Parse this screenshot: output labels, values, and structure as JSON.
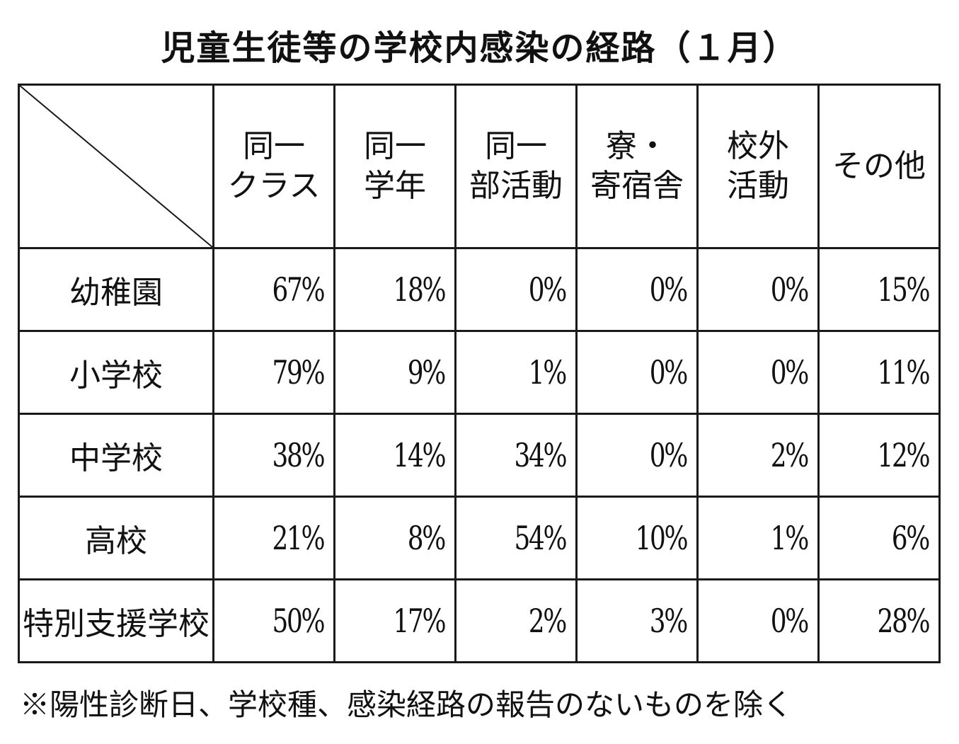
{
  "title": "児童生徒等の学校内感染の経路（１月）",
  "columns": [
    {
      "line1": "同一",
      "line2": "クラス"
    },
    {
      "line1": "同一",
      "line2": "学年"
    },
    {
      "line1": "同一",
      "line2": "部活動"
    },
    {
      "line1": "寮・",
      "line2": "寄宿舎"
    },
    {
      "line1": "校外",
      "line2": "活動"
    },
    {
      "line1": "その他",
      "line2": ""
    }
  ],
  "rows": [
    {
      "label": "幼稚園",
      "values": [
        "67%",
        "18%",
        "0%",
        "0%",
        "0%",
        "15%"
      ]
    },
    {
      "label": "小学校",
      "values": [
        "79%",
        "9%",
        "1%",
        "0%",
        "0%",
        "11%"
      ]
    },
    {
      "label": "中学校",
      "values": [
        "38%",
        "14%",
        "34%",
        "0%",
        "2%",
        "12%"
      ]
    },
    {
      "label": "高校",
      "values": [
        "21%",
        "8%",
        "54%",
        "10%",
        "1%",
        "6%"
      ]
    },
    {
      "label": "特別支援学校",
      "values": [
        "50%",
        "17%",
        "2%",
        "3%",
        "0%",
        "28%"
      ]
    }
  ],
  "note": "※陽性診断日、学校種、感染経路の報告のないものを除く"
}
